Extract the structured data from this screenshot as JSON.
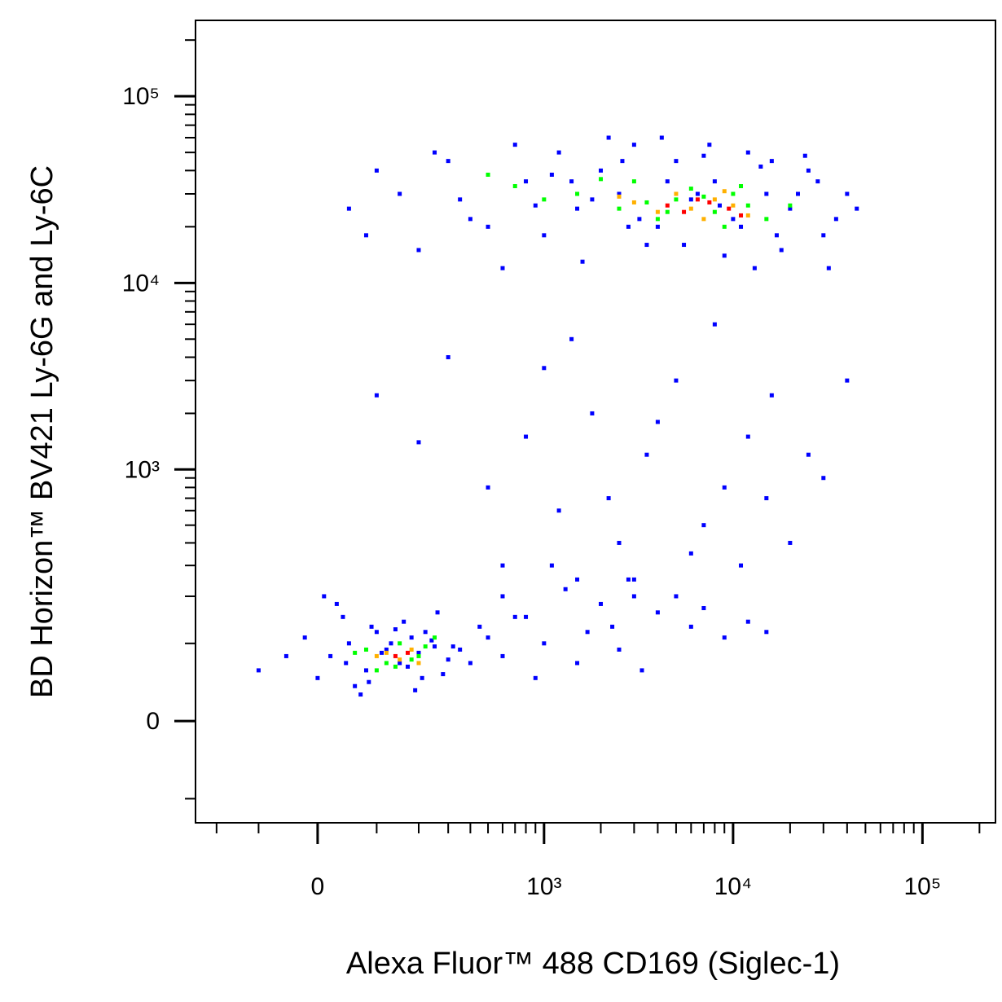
{
  "chart_data": {
    "type": "scatter",
    "xlabel": "Alexa Fluor™ 488 CD169 (Siglec-1)",
    "ylabel": "BD Horizon™ BV421 Ly-6G and Ly-6C",
    "xscale": "biexponential",
    "yscale": "biexponential",
    "xlim": [
      -268,
      243000
    ],
    "ylim": [
      -145,
      255000
    ],
    "xticks": [
      0,
      {
        "value": 1000,
        "label": "10³"
      },
      {
        "value": 10000,
        "label": "10⁴"
      },
      {
        "value": 100000,
        "label": "10⁵"
      }
    ],
    "yticks": [
      0,
      {
        "value": 1000,
        "label": "10³"
      },
      {
        "value": 10000,
        "label": "10⁴"
      },
      {
        "value": 100000,
        "label": "10⁵"
      }
    ],
    "xminorticks": [
      -200,
      -100,
      100,
      200,
      300,
      400,
      500,
      600,
      700,
      800,
      900,
      2000,
      3000,
      4000,
      5000,
      6000,
      7000,
      8000,
      9000,
      20000,
      30000,
      40000,
      50000,
      60000,
      70000,
      80000,
      90000,
      200000
    ],
    "yminorticks": [
      -100,
      100,
      200,
      300,
      400,
      500,
      600,
      700,
      800,
      900,
      2000,
      3000,
      4000,
      5000,
      6000,
      7000,
      8000,
      9000,
      20000,
      30000,
      40000,
      50000,
      60000,
      70000,
      80000,
      90000,
      200000
    ],
    "series": [
      {
        "color": "#0000ff",
        "x": [
          150,
          300,
          500,
          800,
          1200,
          1500,
          2000,
          2500,
          3000,
          4000,
          5000,
          6000,
          8000,
          10000,
          12000,
          15000,
          20000,
          25000,
          30000,
          40000,
          200,
          400,
          700,
          1000,
          1800,
          2200,
          3500,
          4500,
          7000,
          9000,
          11000,
          14000,
          18000,
          22000,
          35000,
          50,
          100,
          600,
          900,
          1400,
          2800,
          5500,
          6500,
          7500,
          13000,
          16000,
          28000,
          45000,
          80,
          250,
          350,
          1100,
          1600,
          2600,
          3200,
          4200,
          8500,
          17000,
          24000,
          32000,
          100,
          300,
          500,
          800,
          1200,
          1800,
          2500,
          3500,
          5000,
          7000,
          9000,
          12000,
          16000,
          20000,
          30000,
          600,
          1000,
          1500,
          2200,
          3000,
          4000,
          6000,
          8000,
          11000,
          15000,
          25000,
          40000,
          200,
          1400,
          2800,
          20,
          50,
          80,
          100,
          120,
          150,
          180,
          200,
          250,
          300,
          -50,
          -100,
          0,
          40,
          60,
          90,
          130,
          170,
          220,
          280,
          350,
          400,
          500,
          30,
          70,
          110,
          160,
          210,
          260,
          320,
          10,
          -20,
          45,
          85,
          140,
          190,
          240,
          450,
          600,
          700,
          800,
          1000,
          1300,
          1700,
          2000,
          2500,
          3000,
          4000,
          5000,
          6000,
          7000,
          9000,
          12000,
          15000,
          1100,
          1500,
          2300,
          3300,
          900,
          600
        ],
        "values": [
          30000,
          45000,
          20000,
          35000,
          50000,
          25000,
          40000,
          30000,
          55000,
          20000,
          45000,
          28000,
          35000,
          22000,
          50000,
          30000,
          25000,
          40000,
          18000,
          30000,
          15000,
          22000,
          55000,
          18000,
          28000,
          60000,
          16000,
          35000,
          48000,
          14000,
          20000,
          42000,
          15000,
          30000,
          22000,
          25000,
          40000,
          12000,
          26000,
          35000,
          20000,
          16000,
          30000,
          55000,
          12000,
          45000,
          35000,
          25000,
          18000,
          50000,
          28000,
          38000,
          13000,
          45000,
          22000,
          60000,
          26000,
          18000,
          48000,
          12000,
          2500,
          4000,
          800,
          1500,
          600,
          2000,
          400,
          1200,
          3000,
          500,
          800,
          1500,
          2500,
          400,
          900,
          300,
          3500,
          250,
          700,
          200,
          1800,
          350,
          6000,
          300,
          700,
          1200,
          3000,
          1400,
          5000,
          250,
          80,
          100,
          60,
          120,
          90,
          70,
          110,
          85,
          95,
          75,
          80,
          60,
          50,
          150,
          40,
          130,
          100,
          65,
          120,
          55,
          90,
          70,
          110,
          180,
          30,
          85,
          140,
          50,
          160,
          95,
          200,
          110,
          70,
          45,
          125,
          35,
          105,
          130,
          80,
          150,
          150,
          100,
          220,
          120,
          180,
          90,
          250,
          160,
          200,
          130,
          170,
          110,
          140,
          120,
          300,
          70,
          130,
          60,
          50,
          200
        ]
      },
      {
        "color": "#00ff00",
        "x": [
          1500,
          2500,
          3000,
          4000,
          5000,
          6000,
          8000,
          10000,
          12000,
          15000,
          700,
          1000,
          2000,
          3500,
          4500,
          7000,
          9000,
          11000,
          20000,
          500,
          80,
          120,
          150,
          200,
          250,
          100,
          180,
          60,
          220,
          140
        ],
        "values": [
          30000,
          25000,
          35000,
          22000,
          28000,
          32000,
          24000,
          30000,
          26000,
          22000,
          33000,
          28000,
          36000,
          27000,
          24000,
          29000,
          20000,
          33000,
          26000,
          38000,
          90,
          70,
          100,
          80,
          110,
          60,
          75,
          85,
          95,
          65
        ]
      },
      {
        "color": "#ffb000",
        "x": [
          3000,
          4000,
          5000,
          6000,
          8000,
          10000,
          12000,
          2500,
          7000,
          9000,
          120,
          150,
          180,
          100,
          200
        ],
        "values": [
          27000,
          24000,
          30000,
          25000,
          28000,
          26000,
          23000,
          29000,
          22000,
          31000,
          85,
          75,
          90,
          80,
          70
        ]
      },
      {
        "color": "#ff0000",
        "x": [
          4500,
          5500,
          7500,
          9500,
          11000,
          6500,
          140,
          170
        ],
        "values": [
          26000,
          24000,
          27000,
          25000,
          23000,
          28000,
          80,
          85
        ]
      }
    ]
  }
}
